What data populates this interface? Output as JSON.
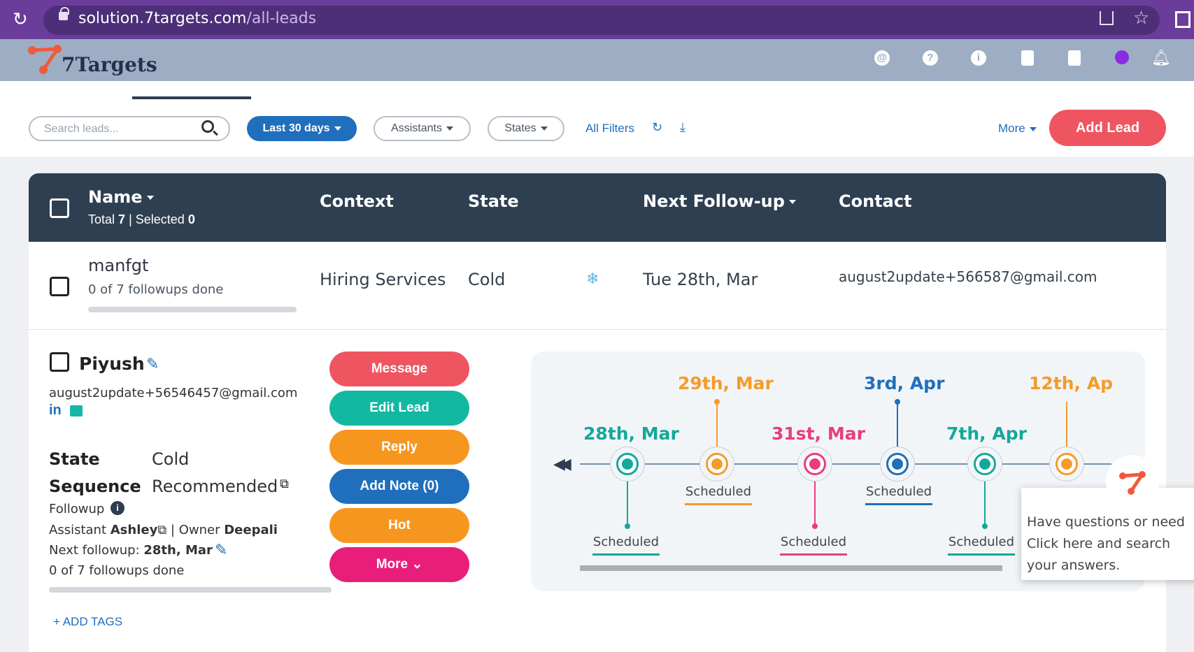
{
  "browser": {
    "url_host": "solution.7targets.com",
    "url_path": "/all-leads"
  },
  "app": {
    "brand": "7Targets",
    "header_icons": [
      "at-icon",
      "help-icon",
      "info-icon",
      "contacts-icon",
      "document-icon",
      "chat-icon",
      "bell-icon"
    ]
  },
  "toolbar": {
    "search_placeholder": "Search leads...",
    "date_filter": "Last 30 days",
    "assistants_filter": "Assistants",
    "states_filter": "States",
    "all_filters": "All Filters",
    "more": "More",
    "add_lead": "Add Lead"
  },
  "table": {
    "columns": {
      "name": "Name",
      "context": "Context",
      "state": "State",
      "next_followup": "Next Follow-up",
      "contact": "Contact"
    },
    "totals": {
      "total_label": "Total",
      "total": "7",
      "selected_label": "| Selected",
      "selected": "0"
    },
    "row1": {
      "name": "manfgt",
      "followups": "0 of 7 followups done",
      "followups_progress": 0,
      "context": "Hiring Services",
      "state": "Cold",
      "state_icon": "snowflake-icon",
      "next_followup": "Tue 28th, Mar",
      "contact": "august2update+566587@gmail.com"
    },
    "row2": {
      "name": "Piyush",
      "email": "august2update+56546457@gmail.com",
      "linkedin": "in",
      "state_label": "State",
      "state": "Cold",
      "sequence_label": "Sequence",
      "sequence": "Recommended",
      "followup_label": "Followup",
      "assistant_label": "Assistant",
      "assistant": "Ashley",
      "owner_label": "| Owner",
      "owner": "Deepali",
      "next_followup_label": "Next followup:",
      "next_followup": "28th, Mar",
      "followups": "0 of 7 followups done",
      "followups_progress": 0,
      "add_tags": "+ ADD TAGS",
      "actions": {
        "message": "Message",
        "edit_lead": "Edit Lead",
        "reply": "Reply",
        "add_note": "Add Note (0)",
        "hot": "Hot",
        "more": "More"
      }
    }
  },
  "timeline": {
    "nodes": [
      {
        "date": "28th, Mar",
        "status": "Scheduled",
        "color": "#14a89a"
      },
      {
        "date": "29th, Mar",
        "status": "Scheduled",
        "color": "#f59b2a"
      },
      {
        "date": "31st, Mar",
        "status": "Scheduled",
        "color": "#e83e7a"
      },
      {
        "date": "3rd, Apr",
        "status": "Scheduled",
        "color": "#1f6fbd"
      },
      {
        "date": "7th, Apr",
        "status": "Scheduled",
        "color": "#14a89a"
      },
      {
        "date": "12th, Ap",
        "status": "",
        "color": "#f59b2a"
      }
    ]
  },
  "help": {
    "text": "Have questions or need Click here and search your answers."
  },
  "colors": {
    "accent_red": "#ef5561",
    "primary_blue": "#1f6fbd",
    "teal": "#14b8a6",
    "orange": "#f59b2a",
    "pink": "#e91e7a",
    "header_dark": "#2e3f52"
  }
}
